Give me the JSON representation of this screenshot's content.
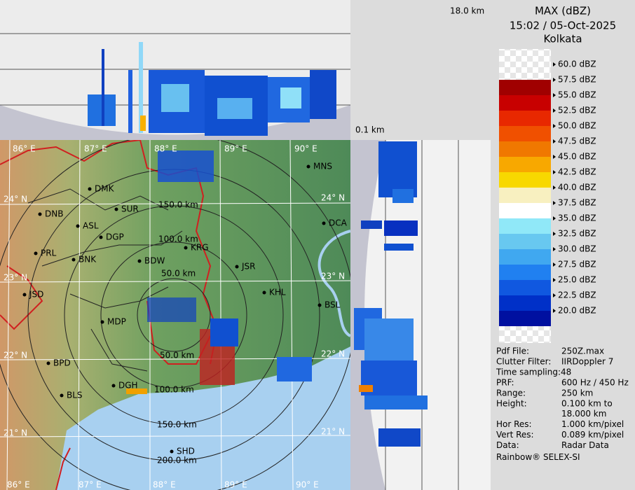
{
  "panels": {
    "top_height_label": "18.0 km",
    "bottom_height_label": "0.1 km"
  },
  "header": {
    "product": "MAX (dBZ)",
    "timestamp": "15:02 / 05-Oct-2025",
    "station": "Kolkata"
  },
  "legend": {
    "labels": [
      "60.0 dBZ",
      "57.5 dBZ",
      "55.0 dBZ",
      "52.5 dBZ",
      "50.0 dBZ",
      "47.5 dBZ",
      "45.0 dBZ",
      "42.5 dBZ",
      "40.0 dBZ",
      "37.5 dBZ",
      "35.0 dBZ",
      "32.5 dBZ",
      "30.0 dBZ",
      "27.5 dBZ",
      "25.0 dBZ",
      "22.5 dBZ",
      "20.0 dBZ"
    ],
    "colors": [
      "#a00000",
      "#c80000",
      "#e82800",
      "#f05000",
      "#f07800",
      "#f8a800",
      "#f8d800",
      "#f8f0c0",
      "#ffffff",
      "#90e8f8",
      "#68c8f0",
      "#40a8f0",
      "#2080f0",
      "#1058e0",
      "#0030c8",
      "#0010a0"
    ]
  },
  "info": {
    "rows": [
      {
        "label": "Pdf File:",
        "lines": [
          "250Z.max"
        ]
      },
      {
        "label": "Clutter Filter:",
        "lines": [
          "IIRDoppler 7"
        ]
      },
      {
        "label": "Time sampling:48",
        "lines": []
      },
      {
        "label": "PRF:",
        "lines": [
          "600 Hz / 450 Hz"
        ]
      },
      {
        "label": "Range:",
        "lines": [
          "250 km"
        ]
      },
      {
        "label": "Height:",
        "lines": [
          "0.100 km to",
          "18.000 km"
        ]
      },
      {
        "label": "Hor Res:",
        "lines": [
          "1.000 km/pixel"
        ]
      },
      {
        "label": "Vert Res:",
        "lines": [
          "0.089 km/pixel"
        ]
      },
      {
        "label": "Data:",
        "lines": [
          "Radar Data"
        ]
      }
    ],
    "credit": "Rainbow® SELEX-SI"
  },
  "map": {
    "lon_labels_top": [
      "86° E",
      "87° E",
      "88° E",
      "89° E",
      "90° E"
    ],
    "lon_labels_bottom": [
      "86° E",
      "87° E",
      "88° E",
      "89° E",
      "90° E"
    ],
    "lat_labels_left": [
      "24° N",
      "23° N",
      "22° N",
      "21° N"
    ],
    "lat_labels_right": [
      "24° N",
      "23° N",
      "22° N",
      "21° N"
    ],
    "cities": [
      "MNS",
      "DMK",
      "SUR",
      "DNB",
      "ASL",
      "DGP",
      "KRG",
      "PRL",
      "BNK",
      "BDW",
      "JSR",
      "JSD",
      "KHL",
      "BSL",
      "DCA",
      "MDP",
      "BPD",
      "DGH",
      "BLS",
      "SHD"
    ],
    "range_labels": [
      "150.0 km",
      "100.0 km",
      "50.0 km",
      "50.0 km",
      "100.0 km",
      "150.0 km",
      "200.0 km"
    ]
  }
}
